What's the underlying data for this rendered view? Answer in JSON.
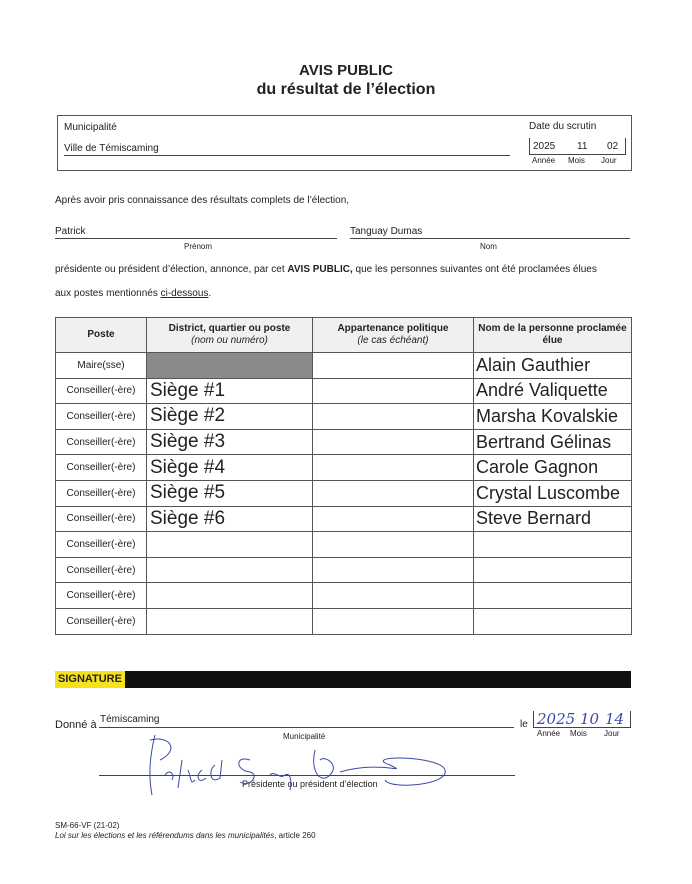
{
  "title": {
    "line1": "AVIS PUBLIC",
    "line2": "du résultat de l’élection"
  },
  "header_box": {
    "municipality_label": "Municipalité",
    "municipality_value": "Ville de Témiscaming",
    "date_label": "Date du scrutin",
    "date": {
      "year": "2025",
      "month": "11",
      "day": "02"
    },
    "date_sublabels": {
      "year": "Année",
      "month": "Mois",
      "day": "Jour"
    }
  },
  "intro": "Après avoir pris connaissance des résultats complets de l’élection,",
  "officer": {
    "first_name": "Patrick",
    "last_name": "Tanguay Dumas",
    "first_label": "Prénom",
    "last_label": "Nom"
  },
  "announcement": {
    "before": "présidente ou président d’élection, annonce, par cet ",
    "bold": "AVIS PUBLIC,",
    "after": " que les personnes suivantes ont été proclamées élues",
    "line2_before": "aux postes mentionnés ",
    "line2_link": "ci-dessous",
    "line2_after": "."
  },
  "table": {
    "headers": [
      {
        "main": "Poste",
        "sub": ""
      },
      {
        "main": "District, quartier ou poste",
        "sub": "(nom ou numéro)"
      },
      {
        "main": "Appartenance politique",
        "sub": "(le cas échéant)"
      },
      {
        "main": "Nom de la personne proclamée élue",
        "sub": ""
      }
    ],
    "rows": [
      {
        "poste": "Maire(sse)",
        "district": "",
        "parti": "",
        "nom": "Alain Gauthier"
      },
      {
        "poste": "Conseiller(-ère)",
        "district": "Siège #1",
        "parti": "",
        "nom": "André Valiquette"
      },
      {
        "poste": "Conseiller(-ère)",
        "district": "Siège #2",
        "parti": "",
        "nom": "Marsha Kovalskie"
      },
      {
        "poste": "Conseiller(-ère)",
        "district": "Siège #3",
        "parti": "",
        "nom": "Bertrand Gélinas"
      },
      {
        "poste": "Conseiller(-ère)",
        "district": "Siège #4",
        "parti": "",
        "nom": "Carole Gagnon"
      },
      {
        "poste": "Conseiller(-ère)",
        "district": "Siège #5",
        "parti": "",
        "nom": "Crystal Luscombe"
      },
      {
        "poste": "Conseiller(-ère)",
        "district": "Siège #6",
        "parti": "",
        "nom": "Steve Bernard"
      },
      {
        "poste": "Conseiller(-ère)",
        "district": "",
        "parti": "",
        "nom": ""
      },
      {
        "poste": "Conseiller(-ère)",
        "district": "",
        "parti": "",
        "nom": ""
      },
      {
        "poste": "Conseiller(-ère)",
        "district": "",
        "parti": "",
        "nom": ""
      },
      {
        "poste": "Conseiller(-ère)",
        "district": "",
        "parti": "",
        "nom": ""
      }
    ]
  },
  "signature": {
    "section_label": "SIGNATURE",
    "given_at_label": "Donné à",
    "given_at_value": "Témiscaming",
    "municipality_label": "Municipalité",
    "le_label": "le",
    "date": {
      "year": "2025",
      "month": "10",
      "day": "14"
    },
    "date_sublabels": {
      "year": "Année",
      "month": "Mois",
      "day": "Jour"
    },
    "signer_label": "Présidente ou président d’élection",
    "section_color": "#f5e21a"
  },
  "footer": {
    "code": "SM-66-VF (21-02)",
    "law_italic": "Loi sur les élections et les référendums dans les municipalités",
    "law_after": ", article 260"
  }
}
